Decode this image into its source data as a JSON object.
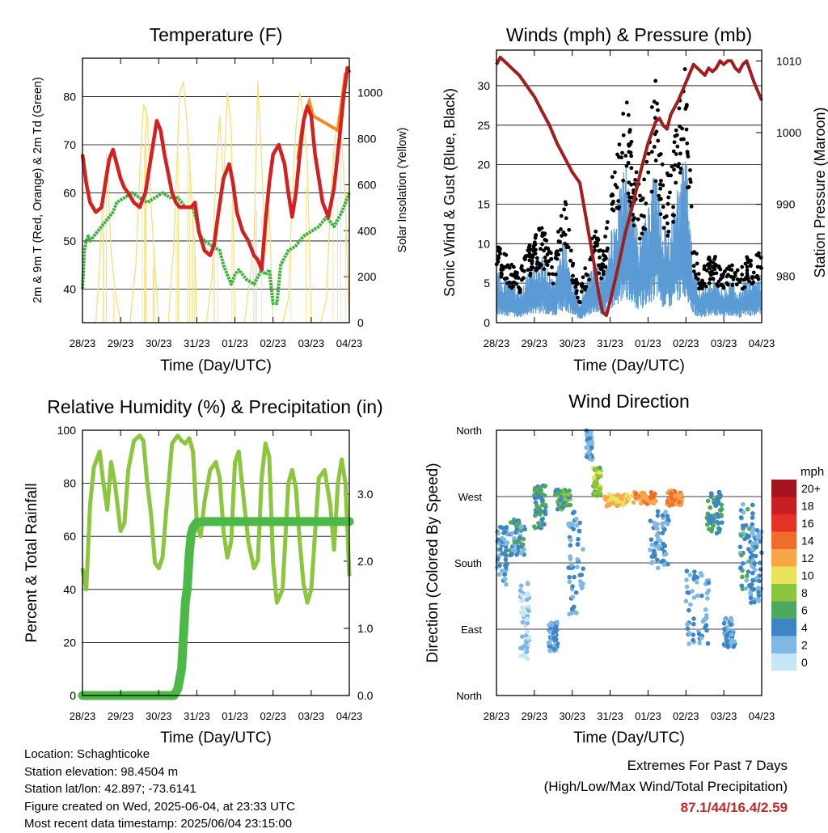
{
  "panels": {
    "temperature": {
      "title": "Temperature (F)",
      "ylabel_left": "2m & 9m T (Red, Orange) & 2m Td (Green)",
      "ylabel_right": "Solar Insolation (Yellow)",
      "xlabel": "Time (Day/UTC)"
    },
    "winds": {
      "title": "Winds (mph) & Pressure (mb)",
      "ylabel_left": "Sonic Wind & Gust (Blue, Black)",
      "ylabel_right": "Station Pressure (Maroon)",
      "xlabel": "Time (Day/UTC)"
    },
    "humidity": {
      "title": "Relative Humidity (%) & Precipitation (in)",
      "ylabel_left": "Percent & Total Rainfall",
      "xlabel": "Time (Day/UTC)"
    },
    "direction": {
      "title": "Wind Direction",
      "ylabel_left": "Direction (Colored By Speed)",
      "xlabel": "Time (Day/UTC)",
      "legend_title": "mph"
    }
  },
  "info": {
    "location": "Location: Schaghticoke",
    "elevation": "Station elevation: 98.4504 m",
    "latlon": "Station lat/lon: 42.897; -73.6141",
    "created": "Figure created on Wed, 2025-06-04, at 23:33 UTC",
    "recent": "Most recent data timestamp: 2025/06/04 23:15:00"
  },
  "extremes": {
    "title": "Extremes For Past 7 Days",
    "subtitle": "(High/Low/Max Wind/Total Precipitation)",
    "values": "87.1/44/16.4/2.59"
  },
  "colors": {
    "temp_2m": "#d32020",
    "temp_9m": "#f08a24",
    "dewpoint": "#3cb23c",
    "solar": "#f7e07a",
    "wind": "#5b9bd5",
    "gust": "#000000",
    "pressure": "#a01e1e",
    "rh": "#8cc63f",
    "precip": "#4cb847"
  },
  "chart_data": [
    {
      "type": "line",
      "title": "Temperature (F)",
      "x_ticks": [
        "28/23",
        "29/23",
        "30/23",
        "31/23",
        "01/23",
        "02/23",
        "03/23",
        "04/23"
      ],
      "xlim": [
        0,
        7
      ],
      "ylim": [
        33,
        88
      ],
      "y_ticks": [
        40,
        50,
        60,
        70,
        80
      ],
      "y2lim": [
        0,
        1150
      ],
      "y2_ticks": [
        0,
        200,
        400,
        600,
        800,
        1000
      ],
      "grid": true,
      "series": [
        {
          "key": "t2m",
          "axis": "left",
          "x": [
            0,
            0.1,
            0.2,
            0.35,
            0.5,
            0.6,
            0.7,
            0.8,
            0.9,
            1.0,
            1.1,
            1.2,
            1.35,
            1.5,
            1.65,
            1.75,
            1.85,
            1.95,
            2.05,
            2.15,
            2.25,
            2.35,
            2.45,
            2.55,
            2.7,
            2.85,
            2.95,
            3.05,
            3.2,
            3.35,
            3.45,
            3.55,
            3.7,
            3.85,
            3.95,
            4.05,
            4.2,
            4.35,
            4.5,
            4.6,
            4.7,
            4.8,
            4.9,
            5.0,
            5.15,
            5.3,
            5.4,
            5.5,
            5.6,
            5.7,
            5.8,
            5.9,
            6.0,
            6.1,
            6.3,
            6.45,
            6.6,
            6.75,
            6.85,
            6.95,
            7.0
          ],
          "y": [
            68,
            62,
            58,
            56,
            57,
            62,
            67,
            69,
            66,
            63,
            61,
            60,
            58,
            57,
            60,
            65,
            70,
            75,
            73,
            68,
            64,
            60,
            58,
            57,
            57,
            57,
            58,
            52,
            48,
            47,
            49,
            55,
            63,
            66,
            62,
            56,
            52,
            50,
            47,
            46,
            44,
            54,
            62,
            68,
            70,
            66,
            60,
            55,
            60,
            68,
            75,
            78,
            76,
            68,
            58,
            55,
            61,
            72,
            80,
            86,
            85
          ]
        },
        {
          "key": "dewpoint",
          "axis": "left",
          "x": [
            0,
            0.05,
            0.1,
            0.15,
            0.2,
            0.4,
            0.6,
            0.8,
            0.9,
            1.1,
            1.3,
            1.5,
            1.7,
            1.9,
            2.1,
            2.3,
            2.5,
            2.7,
            2.9,
            3.0,
            3.1,
            3.2,
            3.4,
            3.6,
            3.7,
            3.8,
            3.9,
            4.0,
            4.1,
            4.3,
            4.5,
            4.7,
            4.8,
            4.9,
            5.0,
            5.1,
            5.2,
            5.4,
            5.6,
            5.8,
            6.0,
            6.2,
            6.4,
            6.6,
            6.8,
            6.9,
            7.0
          ],
          "y": [
            40,
            48,
            50,
            51,
            50,
            52,
            54,
            56,
            58,
            59,
            60,
            59,
            58,
            59,
            60,
            59,
            59,
            57,
            57,
            54,
            51,
            50,
            49,
            48,
            45,
            43,
            41,
            43,
            44,
            42,
            41,
            44,
            43,
            44,
            37,
            37,
            45,
            48,
            49,
            51,
            52,
            53,
            55,
            53,
            56,
            58,
            60
          ]
        },
        {
          "key": "solar",
          "axis": "right",
          "x": [
            0,
            0.35,
            0.45,
            0.55,
            0.65,
            0.75,
            0.85,
            1.0,
            1.25,
            1.4,
            1.5,
            1.6,
            1.7,
            1.8,
            1.9,
            2.0,
            2.25,
            2.4,
            2.55,
            2.65,
            2.75,
            2.85,
            2.95,
            3.0,
            3.25,
            3.4,
            3.5,
            3.6,
            3.7,
            3.8,
            3.9,
            4.0,
            4.25,
            4.4,
            4.5,
            4.6,
            4.7,
            4.8,
            4.9,
            5.0,
            5.25,
            5.4,
            5.5,
            5.6,
            5.7,
            5.8,
            5.9,
            6.0,
            6.25,
            6.4,
            6.5,
            6.6,
            6.7,
            6.8,
            6.9,
            7.0
          ],
          "y": [
            0,
            0,
            250,
            600,
            700,
            300,
            150,
            0,
            0,
            250,
            650,
            950,
            900,
            500,
            250,
            0,
            0,
            350,
            1000,
            1050,
            850,
            600,
            300,
            0,
            0,
            200,
            650,
            900,
            600,
            1000,
            850,
            0,
            0,
            200,
            350,
            1050,
            700,
            300,
            500,
            0,
            0,
            100,
            550,
            850,
            1000,
            900,
            700,
            0,
            0,
            100,
            500,
            750,
            900,
            800,
            500,
            0
          ]
        },
        {
          "key": "t9m",
          "axis": "left",
          "x": [
            5.65,
            5.75,
            5.85,
            5.95,
            6.05,
            6.7,
            6.8,
            6.9
          ],
          "y": [
            67,
            73,
            77,
            79,
            76,
            73,
            79,
            85
          ]
        }
      ]
    },
    {
      "type": "line",
      "title": "Winds (mph) & Pressure (mb)",
      "x_ticks": [
        "28/23",
        "29/23",
        "30/23",
        "31/23",
        "01/23",
        "02/23",
        "03/23",
        "04/23"
      ],
      "xlim": [
        0,
        7
      ],
      "ylim": [
        0,
        34.5
      ],
      "y_ticks": [
        0,
        5,
        10,
        15,
        20,
        25,
        30
      ],
      "y2lim": [
        973.5,
        1011.5
      ],
      "y2_ticks": [
        980,
        990,
        1000,
        1010
      ],
      "grid": true,
      "series": [
        {
          "key": "pressure",
          "axis": "right",
          "x": [
            0,
            0.1,
            0.2,
            0.4,
            0.6,
            0.8,
            1.0,
            1.2,
            1.4,
            1.6,
            1.8,
            2.0,
            2.2,
            2.3,
            2.4,
            2.5,
            2.6,
            2.7,
            2.8,
            2.9,
            3.0,
            3.2,
            3.4,
            3.6,
            3.8,
            4.0,
            4.2,
            4.3,
            4.4,
            4.5,
            4.6,
            4.8,
            5.0,
            5.2,
            5.4,
            5.5,
            5.6,
            5.7,
            5.8,
            5.9,
            6.0,
            6.1,
            6.2,
            6.3,
            6.4,
            6.5,
            6.6,
            6.8,
            7.0
          ],
          "y": [
            1009.5,
            1010.5,
            1010,
            1009,
            1008,
            1006.5,
            1005,
            1003,
            1001,
            998.5,
            996.5,
            994.5,
            993,
            990,
            987,
            984,
            981,
            977.5,
            975,
            974.5,
            976.5,
            981,
            986,
            990,
            994.5,
            998.5,
            1001.5,
            1002,
            1001,
            1000.5,
            1002.5,
            1004.5,
            1007,
            1009.5,
            1008.5,
            1008,
            1009,
            1008.5,
            1009,
            1010,
            1009.5,
            1010,
            1010,
            1009,
            1008.5,
            1009.5,
            1010,
            1007,
            1004.5
          ]
        },
        {
          "key": "wind_mean",
          "axis": "left",
          "x": [
            0,
            0.3,
            0.6,
            0.9,
            1.2,
            1.5,
            1.8,
            2.0,
            2.2,
            2.4,
            2.6,
            2.8,
            3.0,
            3.2,
            3.4,
            3.6,
            3.8,
            4.0,
            4.2,
            4.4,
            4.6,
            4.8,
            5.0,
            5.2,
            5.4,
            5.6,
            5.8,
            6.0,
            6.2,
            6.4,
            6.6,
            6.8,
            7.0
          ],
          "y": [
            5,
            4,
            3,
            5,
            6,
            4,
            8,
            4,
            2,
            4,
            6,
            4,
            8,
            11,
            15,
            10,
            8,
            11,
            15,
            9,
            9,
            13,
            16,
            5,
            3,
            4,
            4,
            3,
            4,
            3,
            4,
            4,
            5
          ]
        }
      ]
    },
    {
      "type": "line",
      "title": "Relative Humidity (%) & Precipitation (in)",
      "x_ticks": [
        "28/23",
        "29/23",
        "30/23",
        "31/23",
        "01/23",
        "02/23",
        "03/23",
        "04/23"
      ],
      "xlim": [
        0,
        7
      ],
      "ylim": [
        0,
        100
      ],
      "y_ticks": [
        0,
        20,
        40,
        60,
        80,
        100
      ],
      "y2lim": [
        0,
        3.95
      ],
      "y2_ticks": [
        "0.0",
        "1.0",
        "2.0",
        "3.0"
      ],
      "grid": true,
      "series": [
        {
          "key": "rh",
          "axis": "left",
          "x": [
            0,
            0.1,
            0.2,
            0.3,
            0.45,
            0.55,
            0.65,
            0.75,
            0.85,
            1.0,
            1.1,
            1.2,
            1.35,
            1.5,
            1.6,
            1.7,
            1.8,
            1.9,
            2.0,
            2.1,
            2.2,
            2.35,
            2.5,
            2.6,
            2.7,
            2.8,
            2.9,
            3.0,
            3.1,
            3.2,
            3.35,
            3.5,
            3.6,
            3.7,
            3.8,
            3.9,
            4.0,
            4.1,
            4.2,
            4.35,
            4.5,
            4.6,
            4.7,
            4.8,
            4.9,
            5.0,
            5.1,
            5.25,
            5.4,
            5.5,
            5.6,
            5.7,
            5.8,
            5.9,
            6.0,
            6.2,
            6.35,
            6.5,
            6.6,
            6.7,
            6.8,
            6.9,
            7.0
          ],
          "y": [
            48,
            40,
            72,
            86,
            92,
            80,
            70,
            88,
            80,
            62,
            65,
            85,
            96,
            98,
            96,
            80,
            68,
            50,
            48,
            52,
            70,
            95,
            98,
            96,
            95,
            97,
            92,
            65,
            60,
            73,
            85,
            88,
            82,
            62,
            52,
            58,
            88,
            92,
            78,
            58,
            48,
            51,
            82,
            95,
            90,
            50,
            35,
            40,
            80,
            85,
            78,
            58,
            42,
            35,
            40,
            82,
            85,
            72,
            55,
            80,
            89,
            80,
            45
          ]
        },
        {
          "key": "precip",
          "axis": "right",
          "x": [
            0,
            2.4,
            2.5,
            2.6,
            2.7,
            2.75,
            2.8,
            2.85,
            2.9,
            3.0,
            3.2,
            4.0,
            5.0,
            6.0,
            7.0
          ],
          "y": [
            0,
            0,
            0.1,
            0.4,
            1.4,
            1.6,
            2.1,
            2.4,
            2.5,
            2.58,
            2.59,
            2.59,
            2.59,
            2.59,
            2.59
          ]
        }
      ]
    },
    {
      "type": "scatter",
      "title": "Wind Direction",
      "x_ticks": [
        "28/23",
        "29/23",
        "30/23",
        "31/23",
        "01/23",
        "02/23",
        "03/23",
        "04/23"
      ],
      "xlim": [
        0,
        7
      ],
      "y_ticks": [
        "North",
        "West",
        "South",
        "East",
        "North"
      ],
      "ylim": [
        0,
        360
      ],
      "legend": {
        "title": "mph",
        "labels": [
          "20+",
          "18",
          "16",
          "14",
          "12",
          "10",
          "8",
          "6",
          "4",
          "2",
          "0"
        ],
        "colors": [
          "#a5141c",
          "#c91e23",
          "#e53224",
          "#f06c2b",
          "#f9a64a",
          "#e9e25b",
          "#8cc63f",
          "#4ea860",
          "#3d85c6",
          "#7fb8e3",
          "#c6e6f7"
        ]
      },
      "clusters": [
        {
          "x": 0.15,
          "y": 190,
          "spread_x": 0.15,
          "spread_y": 40,
          "speed": 3
        },
        {
          "x": 0.55,
          "y": 215,
          "spread_x": 0.2,
          "spread_y": 25,
          "speed": 4
        },
        {
          "x": 0.75,
          "y": 100,
          "spread_x": 0.12,
          "spread_y": 55,
          "speed": 1
        },
        {
          "x": 1.15,
          "y": 255,
          "spread_x": 0.15,
          "spread_y": 30,
          "speed": 5
        },
        {
          "x": 1.5,
          "y": 80,
          "spread_x": 0.12,
          "spread_y": 20,
          "speed": 3
        },
        {
          "x": 1.75,
          "y": 265,
          "spread_x": 0.2,
          "spread_y": 15,
          "speed": 6
        },
        {
          "x": 2.1,
          "y": 180,
          "spread_x": 0.2,
          "spread_y": 70,
          "speed": 3
        },
        {
          "x": 2.45,
          "y": 340,
          "spread_x": 0.08,
          "spread_y": 20,
          "speed": 3
        },
        {
          "x": 2.65,
          "y": 290,
          "spread_x": 0.1,
          "spread_y": 20,
          "speed": 8
        },
        {
          "x": 3.2,
          "y": 265,
          "spread_x": 0.35,
          "spread_y": 8,
          "speed": 11
        },
        {
          "x": 3.9,
          "y": 268,
          "spread_x": 0.3,
          "spread_y": 8,
          "speed": 13
        },
        {
          "x": 4.3,
          "y": 210,
          "spread_x": 0.25,
          "spread_y": 40,
          "speed": 3
        },
        {
          "x": 4.7,
          "y": 268,
          "spread_x": 0.2,
          "spread_y": 10,
          "speed": 13
        },
        {
          "x": 5.3,
          "y": 120,
          "spread_x": 0.3,
          "spread_y": 50,
          "speed": 3
        },
        {
          "x": 5.75,
          "y": 250,
          "spread_x": 0.2,
          "spread_y": 30,
          "speed": 5
        },
        {
          "x": 6.15,
          "y": 85,
          "spread_x": 0.15,
          "spread_y": 20,
          "speed": 3
        },
        {
          "x": 6.6,
          "y": 200,
          "spread_x": 0.2,
          "spread_y": 60,
          "speed": 4
        },
        {
          "x": 6.85,
          "y": 175,
          "spread_x": 0.15,
          "spread_y": 50,
          "speed": 3
        }
      ]
    }
  ]
}
